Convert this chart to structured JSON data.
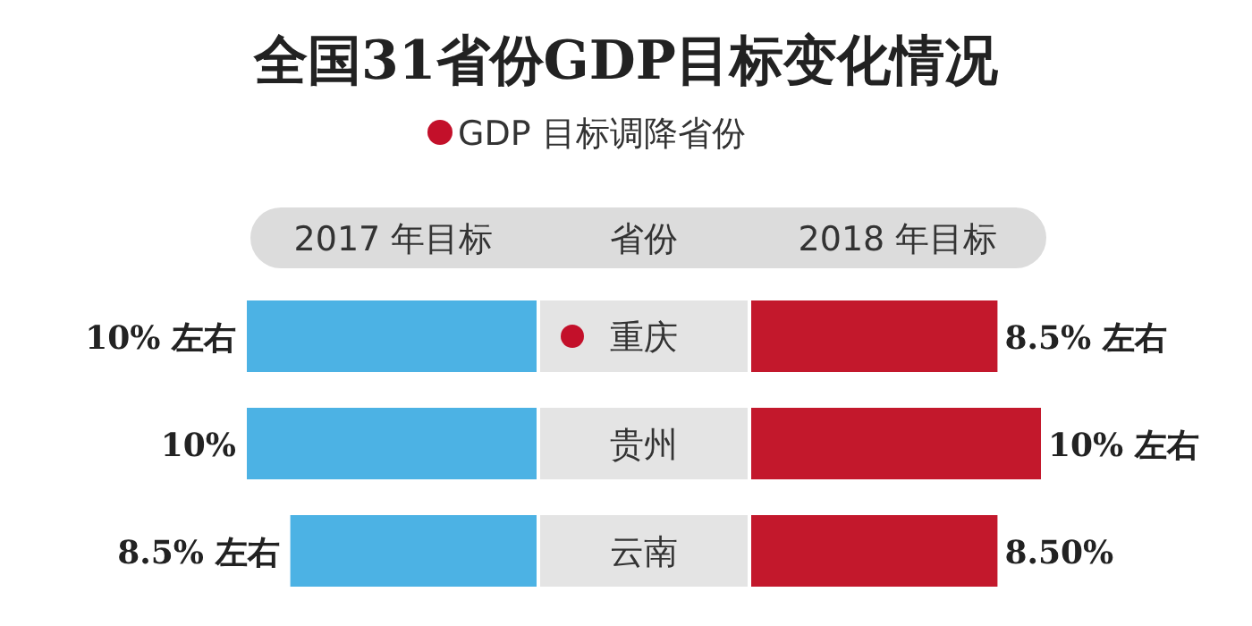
{
  "chart_data": [
    {
      "type": "bar",
      "orientation": "horizontal",
      "title": "全国31省份GDP目标变化情况",
      "ylabel": "省份",
      "annotations": [
        "GDP 目标调降省份"
      ],
      "legend": "top",
      "xlim": [
        10,
        0
      ],
      "categories": [
        "重庆",
        "贵州",
        "云南"
      ],
      "series": [
        {
          "name": "2017 年目标",
          "color": "#4cb2e4",
          "values": [
            10,
            10,
            8.5
          ],
          "value_labels": [
            "10% 左右",
            "10%",
            "8.5% 左右"
          ]
        }
      ]
    },
    {
      "type": "bar",
      "orientation": "horizontal",
      "legend": "top",
      "tick_labels": false,
      "xlim": [
        0,
        10
      ],
      "categories": [
        null,
        null,
        null
      ],
      "series": [
        {
          "name": "2018 年目标",
          "color": "#c3182c",
          "values": [
            8.5,
            10,
            8.5
          ],
          "value_labels": [
            "8.5% 左右",
            "10% 左右",
            "8.50%"
          ]
        }
      ]
    }
  ]
}
